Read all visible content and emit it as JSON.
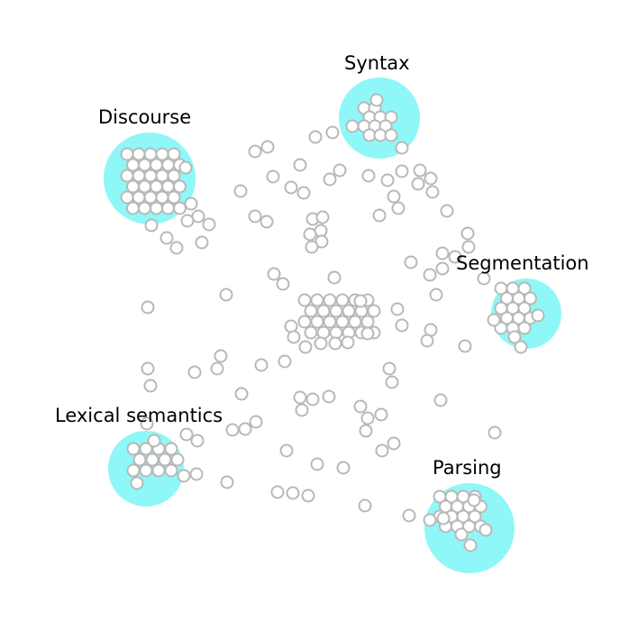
{
  "colors": {
    "halo": "#8ff7f7",
    "node_fill": "#ffffff",
    "node_stroke": "#b8b8b8",
    "label": "#000000"
  },
  "topics": [
    {
      "key": "syntax",
      "label": "Syntax"
    },
    {
      "key": "discourse",
      "label": "Discourse"
    },
    {
      "key": "segmentation",
      "label": "Segmentation"
    },
    {
      "key": "lexical-semantics",
      "label": "Lexical semantics"
    },
    {
      "key": "parsing",
      "label": "Parsing"
    }
  ]
}
